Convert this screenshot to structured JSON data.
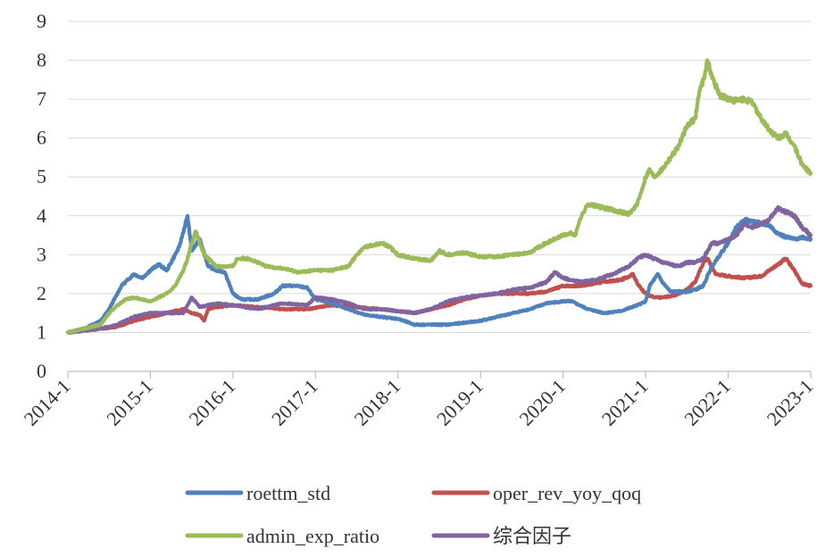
{
  "chart_data": {
    "type": "line",
    "title": "",
    "xlabel": "",
    "ylabel": "",
    "ylim": [
      0,
      9
    ],
    "yticks": [
      "0",
      "1",
      "2",
      "3",
      "4",
      "5",
      "6",
      "7",
      "8",
      "9"
    ],
    "xlim": [
      2014.0,
      2023.0
    ],
    "xticks": [
      {
        "label": "2014-1",
        "x": 2014.0
      },
      {
        "label": "2015-1",
        "x": 2015.0
      },
      {
        "label": "2016-1",
        "x": 2016.0
      },
      {
        "label": "2017-1",
        "x": 2017.0
      },
      {
        "label": "2018-1",
        "x": 2018.0
      },
      {
        "label": "2019-1",
        "x": 2019.0
      },
      {
        "label": "2020-1",
        "x": 2020.0
      },
      {
        "label": "2021-1",
        "x": 2021.0
      },
      {
        "label": "2022-1",
        "x": 2022.0
      },
      {
        "label": "2023-1",
        "x": 2023.0
      }
    ],
    "grid": "horizontal",
    "legend_position": "bottom",
    "series": [
      {
        "name": "roettm_std",
        "color": "#4f81bd",
        "x": [
          2014.0,
          2014.2,
          2014.4,
          2014.5,
          2014.65,
          2014.8,
          2014.9,
          2015.0,
          2015.1,
          2015.2,
          2015.3,
          2015.35,
          2015.45,
          2015.5,
          2015.6,
          2015.7,
          2015.8,
          2015.9,
          2016.0,
          2016.1,
          2016.3,
          2016.5,
          2016.6,
          2016.75,
          2016.9,
          2017.0,
          2017.2,
          2017.4,
          2017.6,
          2017.8,
          2018.0,
          2018.2,
          2018.4,
          2018.6,
          2018.8,
          2019.0,
          2019.2,
          2019.4,
          2019.6,
          2019.8,
          2020.0,
          2020.1,
          2020.3,
          2020.5,
          2020.7,
          2020.9,
          2021.0,
          2021.05,
          2021.15,
          2021.2,
          2021.3,
          2021.5,
          2021.6,
          2021.7,
          2021.8,
          2021.9,
          2022.0,
          2022.1,
          2022.2,
          2022.3,
          2022.4,
          2022.5,
          2022.6,
          2022.7,
          2022.8,
          2022.9,
          2023.0
        ],
        "y": [
          1.0,
          1.1,
          1.3,
          1.6,
          2.2,
          2.5,
          2.4,
          2.6,
          2.75,
          2.6,
          3.0,
          3.2,
          4.0,
          3.1,
          3.4,
          2.7,
          2.6,
          2.55,
          2.0,
          1.85,
          1.85,
          2.0,
          2.2,
          2.2,
          2.15,
          1.85,
          1.75,
          1.6,
          1.45,
          1.4,
          1.35,
          1.2,
          1.2,
          1.2,
          1.25,
          1.3,
          1.4,
          1.5,
          1.6,
          1.75,
          1.8,
          1.8,
          1.6,
          1.5,
          1.55,
          1.7,
          1.8,
          2.2,
          2.5,
          2.3,
          2.05,
          2.05,
          2.1,
          2.2,
          2.7,
          3.0,
          3.3,
          3.7,
          3.9,
          3.85,
          3.8,
          3.75,
          3.55,
          3.45,
          3.4,
          3.45,
          3.4
        ]
      },
      {
        "name": "oper_rev_yoy_qoq",
        "color": "#c0504d",
        "x": [
          2014.0,
          2014.2,
          2014.4,
          2014.6,
          2014.8,
          2015.0,
          2015.2,
          2015.4,
          2015.5,
          2015.6,
          2015.65,
          2015.7,
          2015.8,
          2016.0,
          2016.3,
          2016.6,
          2016.9,
          2017.2,
          2017.5,
          2017.8,
          2018.0,
          2018.2,
          2018.4,
          2018.6,
          2018.8,
          2019.0,
          2019.2,
          2019.4,
          2019.6,
          2019.8,
          2020.0,
          2020.2,
          2020.5,
          2020.7,
          2020.85,
          2020.9,
          2021.0,
          2021.1,
          2021.2,
          2021.35,
          2021.5,
          2021.6,
          2021.7,
          2021.75,
          2021.85,
          2022.0,
          2022.2,
          2022.4,
          2022.5,
          2022.6,
          2022.7,
          2022.8,
          2022.9,
          2023.0
        ],
        "y": [
          1.0,
          1.05,
          1.1,
          1.15,
          1.3,
          1.4,
          1.5,
          1.6,
          1.5,
          1.45,
          1.3,
          1.6,
          1.65,
          1.7,
          1.65,
          1.6,
          1.6,
          1.7,
          1.65,
          1.6,
          1.55,
          1.5,
          1.6,
          1.7,
          1.85,
          1.95,
          2.0,
          2.0,
          2.0,
          2.05,
          2.2,
          2.2,
          2.3,
          2.35,
          2.5,
          2.25,
          2.0,
          1.9,
          1.9,
          1.95,
          2.1,
          2.3,
          2.8,
          2.9,
          2.5,
          2.45,
          2.4,
          2.45,
          2.6,
          2.75,
          2.9,
          2.6,
          2.25,
          2.2
        ]
      },
      {
        "name": "admin_exp_ratio",
        "color": "#9bbb59",
        "x": [
          2014.0,
          2014.2,
          2014.4,
          2014.5,
          2014.6,
          2014.7,
          2014.8,
          2014.9,
          2015.0,
          2015.1,
          2015.2,
          2015.3,
          2015.4,
          2015.45,
          2015.5,
          2015.55,
          2015.6,
          2015.65,
          2015.7,
          2015.8,
          2016.0,
          2016.05,
          2016.2,
          2016.4,
          2016.6,
          2016.8,
          2017.0,
          2017.2,
          2017.4,
          2017.5,
          2017.6,
          2017.8,
          2017.9,
          2018.0,
          2018.2,
          2018.4,
          2018.5,
          2018.6,
          2018.8,
          2019.0,
          2019.2,
          2019.4,
          2019.6,
          2019.7,
          2019.8,
          2020.0,
          2020.1,
          2020.15,
          2020.2,
          2020.3,
          2020.5,
          2020.7,
          2020.8,
          2020.9,
          2021.0,
          2021.05,
          2021.1,
          2021.2,
          2021.3,
          2021.4,
          2021.5,
          2021.6,
          2021.65,
          2021.7,
          2021.75,
          2021.8,
          2021.9,
          2022.0,
          2022.1,
          2022.2,
          2022.3,
          2022.4,
          2022.5,
          2022.6,
          2022.7,
          2022.8,
          2022.9,
          2023.0
        ],
        "y": [
          1.0,
          1.1,
          1.2,
          1.5,
          1.7,
          1.85,
          1.9,
          1.85,
          1.8,
          1.9,
          2.0,
          2.2,
          2.6,
          2.9,
          3.3,
          3.6,
          3.3,
          3.0,
          2.9,
          2.7,
          2.7,
          2.9,
          2.9,
          2.7,
          2.65,
          2.55,
          2.6,
          2.6,
          2.7,
          3.0,
          3.2,
          3.3,
          3.2,
          3.0,
          2.9,
          2.85,
          3.1,
          3.0,
          3.05,
          2.95,
          2.95,
          3.0,
          3.05,
          3.2,
          3.3,
          3.5,
          3.55,
          3.5,
          3.9,
          4.3,
          4.2,
          4.1,
          4.05,
          4.3,
          5.0,
          5.2,
          5.0,
          5.2,
          5.5,
          5.8,
          6.3,
          6.5,
          7.2,
          7.5,
          8.0,
          7.6,
          7.1,
          7.0,
          6.95,
          7.0,
          6.9,
          6.5,
          6.2,
          6.0,
          6.1,
          5.8,
          5.3,
          5.1
        ]
      },
      {
        "name": "综合因子",
        "color": "#8064a2",
        "x": [
          2014.0,
          2014.2,
          2014.4,
          2014.6,
          2014.8,
          2015.0,
          2015.2,
          2015.4,
          2015.5,
          2015.6,
          2015.8,
          2016.0,
          2016.3,
          2016.6,
          2016.9,
          2017.0,
          2017.2,
          2017.4,
          2017.6,
          2017.8,
          2018.0,
          2018.2,
          2018.4,
          2018.6,
          2018.8,
          2019.0,
          2019.2,
          2019.4,
          2019.6,
          2019.8,
          2019.9,
          2020.0,
          2020.2,
          2020.4,
          2020.6,
          2020.8,
          2020.9,
          2021.0,
          2021.2,
          2021.4,
          2021.5,
          2021.6,
          2021.7,
          2021.8,
          2021.9,
          2022.0,
          2022.1,
          2022.2,
          2022.3,
          2022.4,
          2022.5,
          2022.6,
          2022.7,
          2022.8,
          2022.9,
          2023.0
        ],
        "y": [
          1.0,
          1.05,
          1.1,
          1.2,
          1.4,
          1.5,
          1.5,
          1.5,
          1.9,
          1.65,
          1.75,
          1.7,
          1.6,
          1.75,
          1.7,
          1.9,
          1.85,
          1.75,
          1.6,
          1.6,
          1.55,
          1.5,
          1.6,
          1.8,
          1.9,
          1.95,
          2.0,
          2.1,
          2.15,
          2.3,
          2.55,
          2.4,
          2.3,
          2.35,
          2.5,
          2.7,
          2.9,
          3.0,
          2.8,
          2.7,
          2.8,
          2.8,
          2.9,
          3.3,
          3.3,
          3.4,
          3.5,
          3.8,
          3.7,
          3.8,
          3.9,
          4.2,
          4.1,
          4.0,
          3.7,
          3.5
        ]
      }
    ]
  }
}
